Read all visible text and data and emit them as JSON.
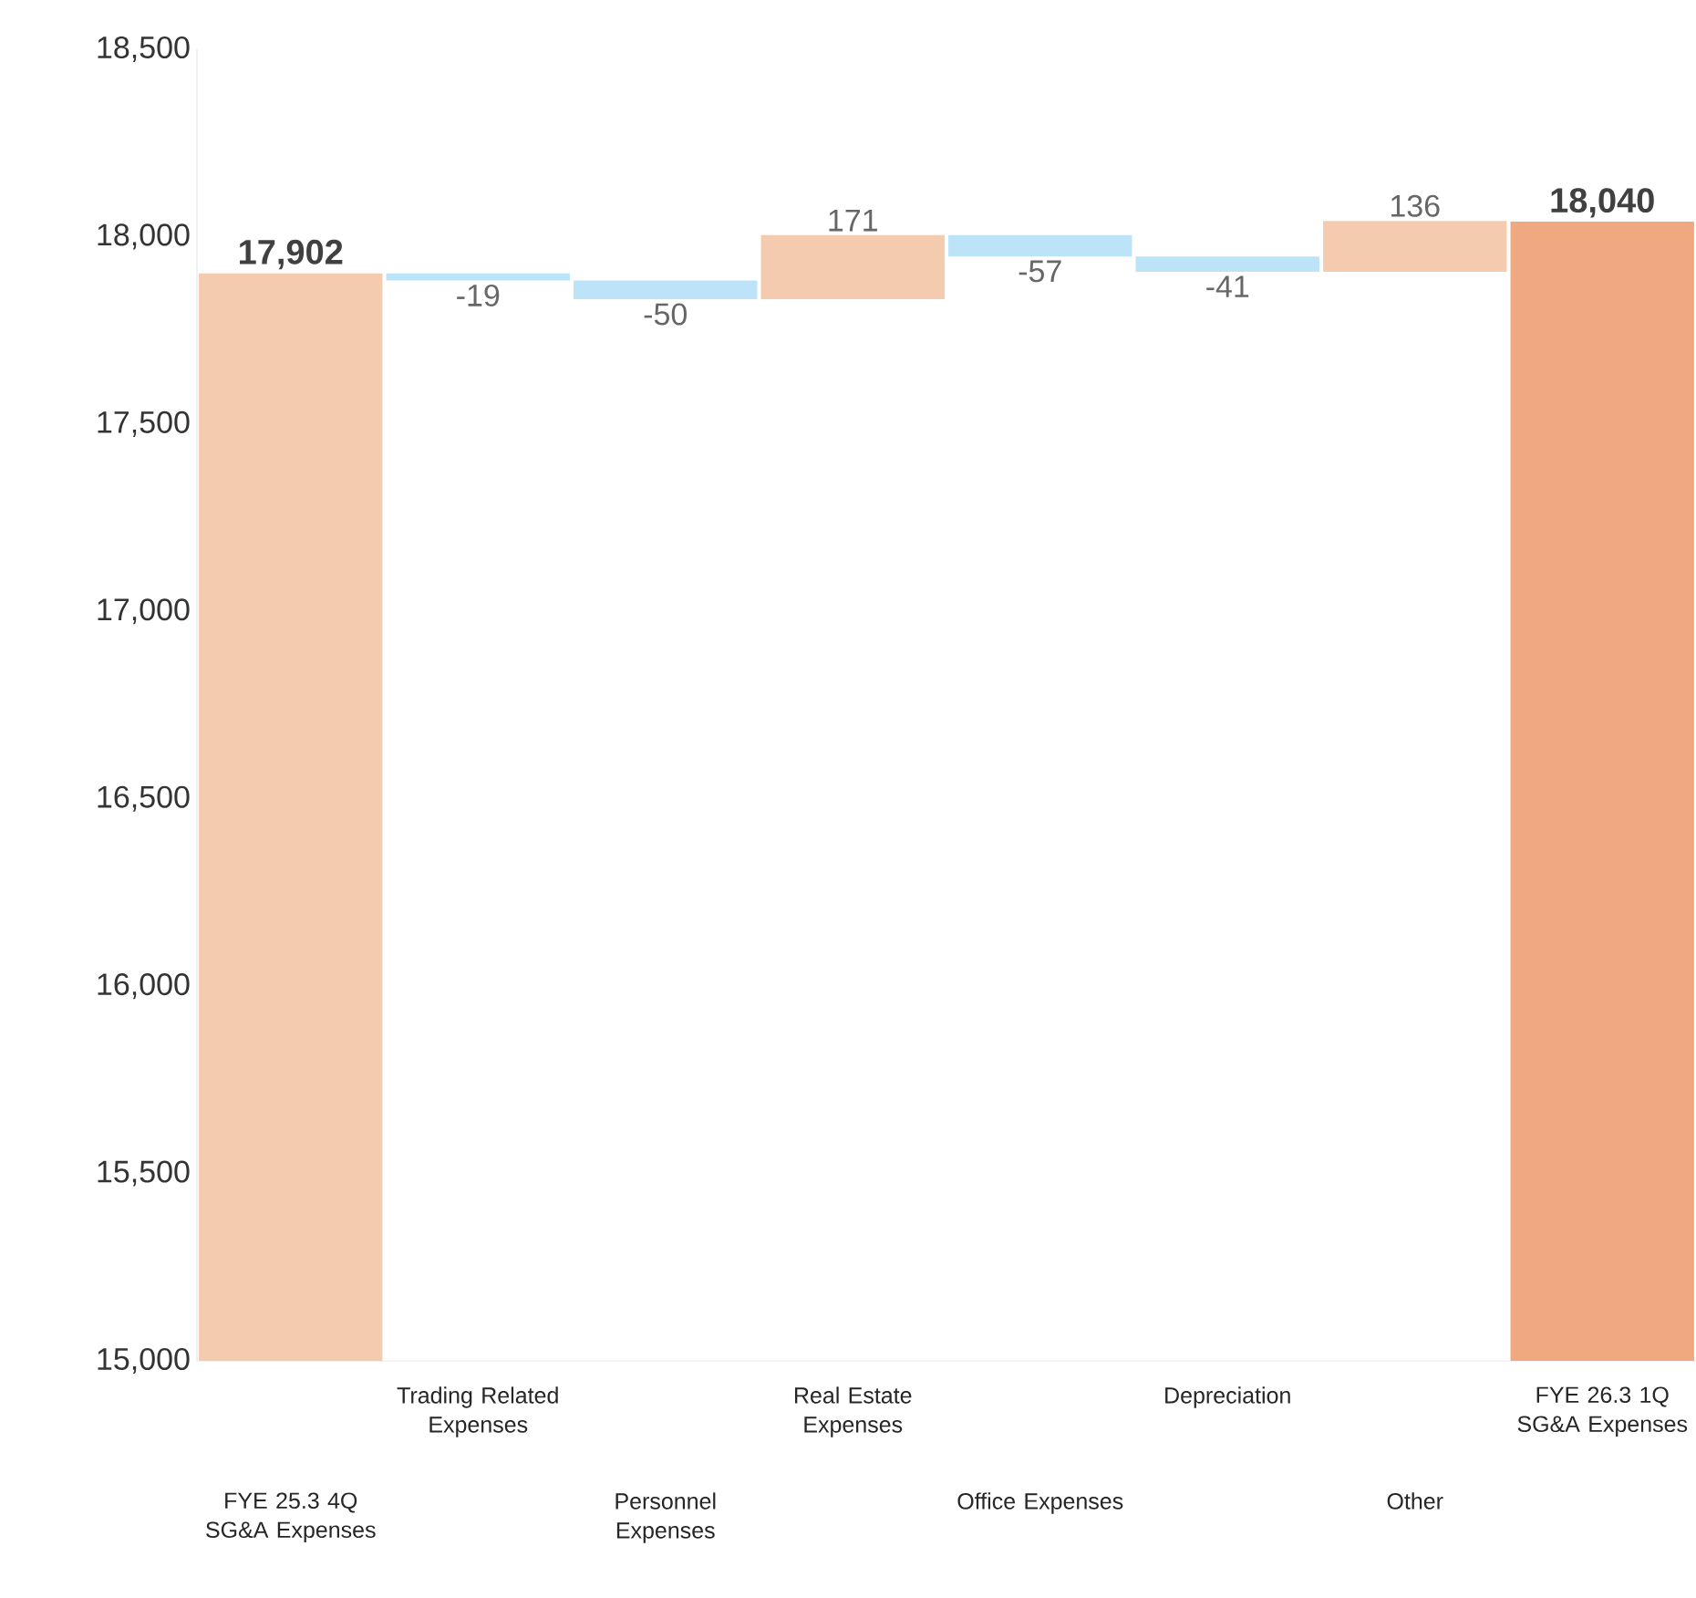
{
  "chart_data": {
    "type": "bar",
    "categories": [
      "FYE 25.3 4Q SG&A Expenses",
      "Trading Related Expenses",
      "Personnel Expenses",
      "Real Estate Expenses",
      "Office Expenses",
      "Depreciation",
      "Other",
      "FYE 26.3 1Q SG&A Expenses"
    ],
    "values": [
      17902,
      -19,
      -50,
      171,
      -57,
      -41,
      136,
      18040
    ],
    "base": [
      null,
      17902,
      17883,
      17833,
      18004,
      17947,
      17906,
      null
    ],
    "colors": [
      "#f5cbb0",
      "#bde3f9",
      "#bde3f9",
      "#f5cbb0",
      "#bde3f9",
      "#bde3f9",
      "#f5cbb0",
      "#f0a880"
    ],
    "value_labels": [
      "17,902",
      "-19",
      "-50",
      "171",
      "-57",
      "-41",
      "136",
      "18,040"
    ],
    "ylim": [
      15000,
      18500
    ],
    "yticks": [
      {
        "value": 15000,
        "label": "15,000"
      },
      {
        "value": 15500,
        "label": "15,500"
      },
      {
        "value": 16000,
        "label": "16,000"
      },
      {
        "value": 16500,
        "label": "16,500"
      },
      {
        "value": 17000,
        "label": "17,000"
      },
      {
        "value": 17500,
        "label": "17,500"
      },
      {
        "value": 18000,
        "label": "18,000"
      },
      {
        "value": 18500,
        "label": "18,500"
      }
    ],
    "grid": false
  }
}
